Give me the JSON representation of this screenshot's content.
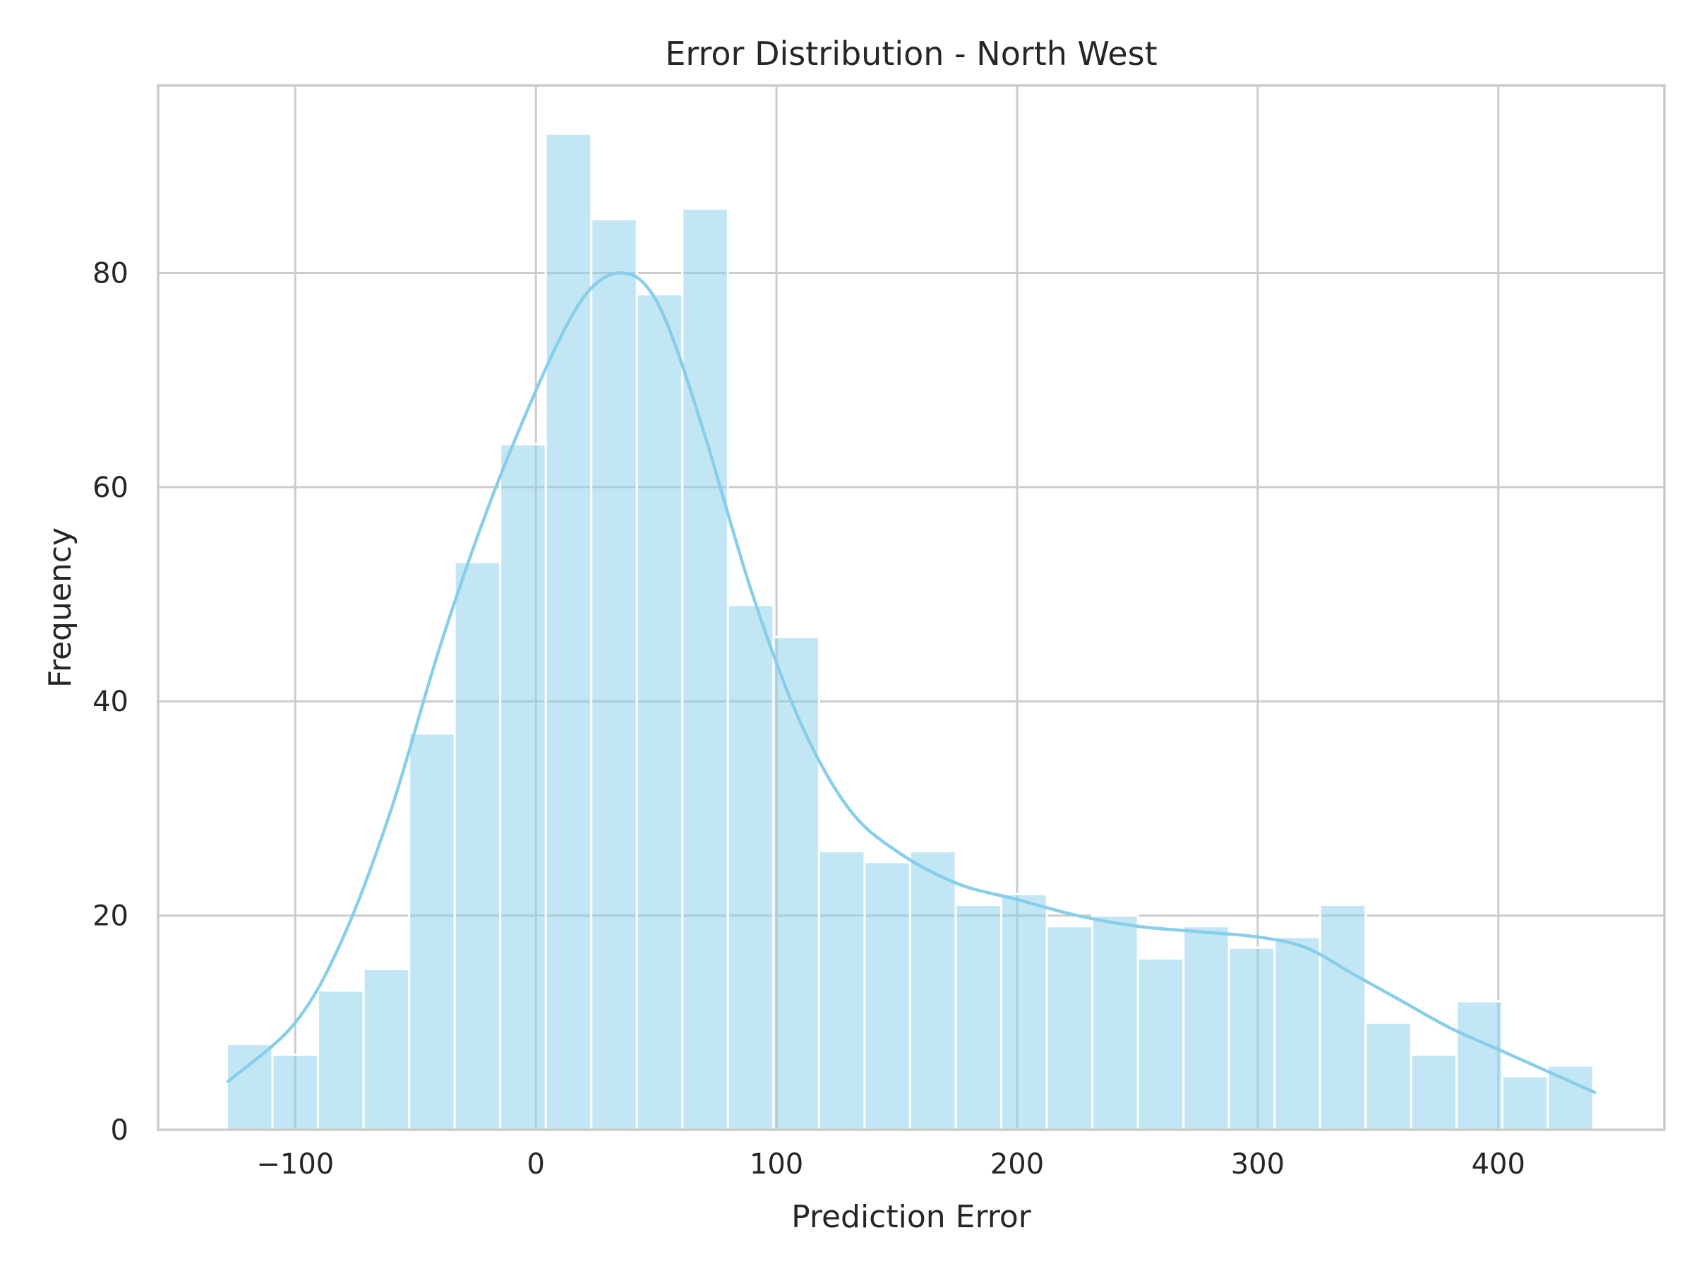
{
  "chart_data": {
    "type": "bar",
    "subtype": "histogram-with-kde",
    "title": "Error Distribution - North West",
    "xlabel": "Prediction Error",
    "ylabel": "Frequency",
    "xlim": [
      -157,
      469
    ],
    "ylim": [
      0,
      97.5
    ],
    "xticks": [
      -100,
      0,
      100,
      200,
      300,
      400
    ],
    "xtick_labels": [
      "−100",
      "0",
      "100",
      "200",
      "300",
      "400"
    ],
    "yticks": [
      0,
      20,
      40,
      60,
      80
    ],
    "ytick_labels": [
      "0",
      "20",
      "40",
      "60",
      "80"
    ],
    "grid": true,
    "bar_color": "#87ceeb",
    "bar_opacity": 0.5,
    "line_color": "#87ceeb",
    "bins": {
      "start": -128.4,
      "width": 18.93,
      "counts": [
        8,
        7,
        13,
        15,
        37,
        53,
        64,
        93,
        85,
        78,
        86,
        49,
        46,
        26,
        25,
        26,
        21,
        22,
        19,
        20,
        16,
        19,
        17,
        18,
        21,
        10,
        7,
        12,
        5,
        6
      ]
    },
    "kde": {
      "x": [
        -128,
        -100,
        -80,
        -60,
        -40,
        -20,
        0,
        15,
        25,
        35,
        45,
        55,
        70,
        90,
        110,
        130,
        150,
        175,
        200,
        225,
        250,
        275,
        300,
        320,
        340,
        360,
        380,
        400,
        420,
        440
      ],
      "y": [
        4.5,
        10,
        18,
        30,
        45,
        58,
        69,
        76,
        79,
        80,
        79,
        75,
        65,
        50,
        38,
        30,
        26,
        23,
        21.5,
        20,
        19,
        18.5,
        18,
        17,
        14.5,
        12,
        9.5,
        7.5,
        5.5,
        3.5
      ]
    }
  }
}
